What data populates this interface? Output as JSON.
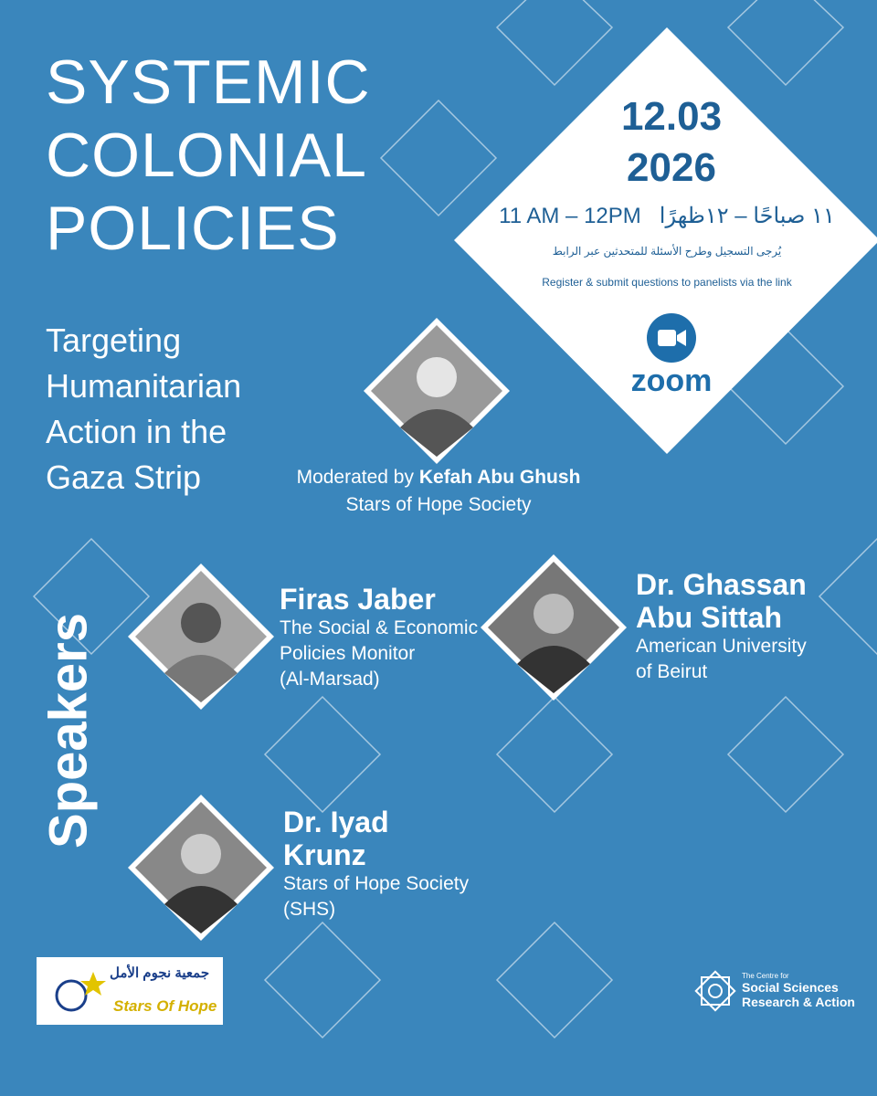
{
  "title": [
    "SYSTEMIC",
    "COLONIAL",
    "POLICIES"
  ],
  "subtitle": [
    "Targeting",
    "Humanitarian",
    "Action in the",
    "Gaza Strip"
  ],
  "event": {
    "date": "12.03",
    "year": "2026",
    "time": "11 AM – 12PM",
    "time_arabic": "١١ صباحًا – ١٢ظهرًا",
    "register_arabic": "يُرجى التسجيل وطرح الأسئلة للمتحدثين عبر الرابط",
    "register": "Register & submit questions to panelists via the link",
    "platform": "zoom"
  },
  "moderator": {
    "prefix": "Moderated by",
    "name": "Kefah Abu Ghush",
    "affiliation": "Stars of Hope Society"
  },
  "speakers_label": "Speakers",
  "speakers": [
    {
      "name": [
        "Firas Jaber"
      ],
      "affiliation": [
        "The Social & Economic",
        "Policies Monitor",
        "(Al-Marsad)"
      ]
    },
    {
      "name": [
        "Dr. Ghassan",
        "Abu Sittah"
      ],
      "affiliation": [
        "American University",
        "of Beirut"
      ]
    },
    {
      "name": [
        "Dr. Iyad",
        "Krunz"
      ],
      "affiliation": [
        "Stars of Hope Society",
        "(SHS)"
      ]
    }
  ],
  "logos": {
    "stars_of_hope": [
      "جمعية نجوم الأمل",
      "Stars Of Hope"
    ],
    "centre": [
      "The Centre for",
      "Social Sciences",
      "Research & Action"
    ]
  }
}
